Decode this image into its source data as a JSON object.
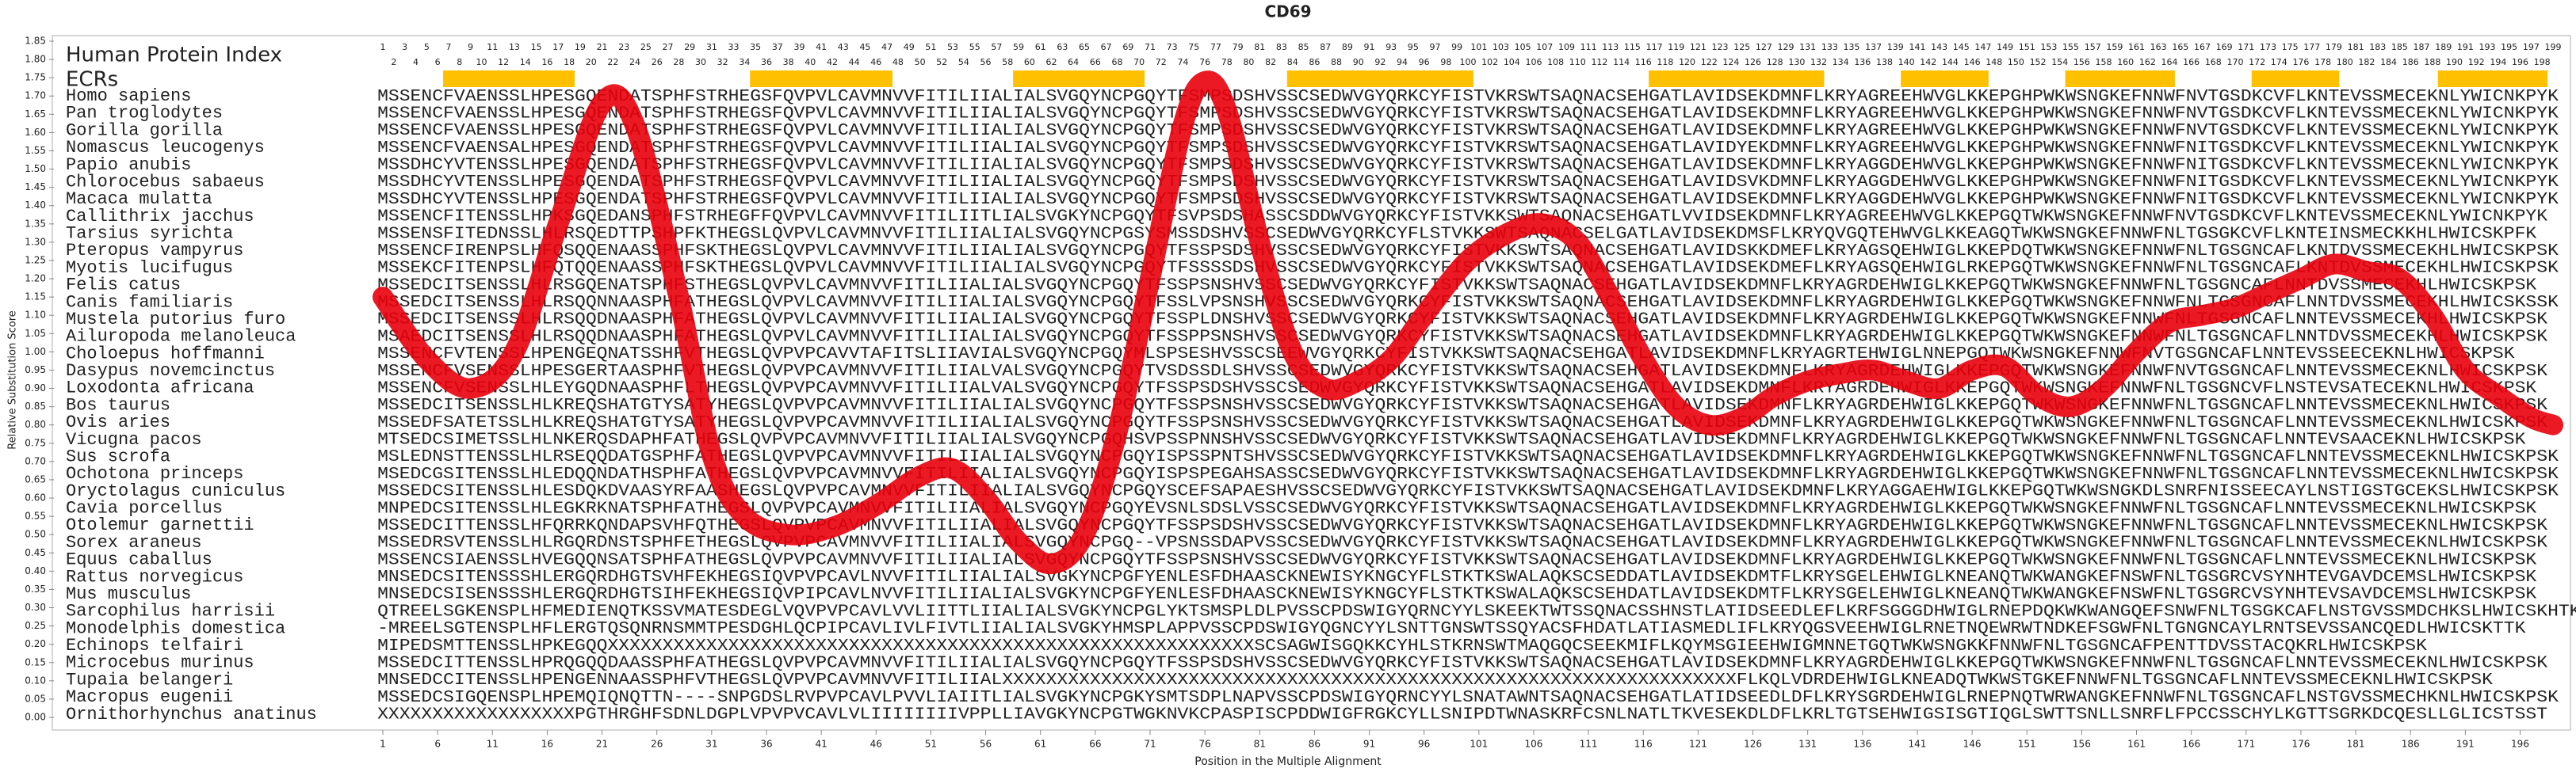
{
  "chart_data": {
    "type": "line",
    "title": "CD69",
    "xlabel": "Position in the Multiple Alignment",
    "ylabel": "Relative Substitution Score",
    "color": "#e8000b",
    "ylim": [
      0,
      1.85
    ],
    "yticks": [
      {
        "value": 0,
        "label": "0.00"
      },
      0.05,
      {
        "value": 0.1,
        "label": "0.10"
      },
      0.15,
      {
        "value": 0.2,
        "label": "0.20"
      },
      0.25,
      {
        "value": 0.3,
        "label": "0.30"
      },
      0.35,
      {
        "value": 0.4,
        "label": "0.40"
      },
      0.45,
      {
        "value": 0.5,
        "label": "0.50"
      },
      0.55,
      {
        "value": 0.6,
        "label": "0.60"
      },
      0.65,
      {
        "value": 0.7,
        "label": "0.70"
      },
      0.75,
      {
        "value": 0.8,
        "label": "0.80"
      },
      0.85,
      {
        "value": 0.9,
        "label": "0.90"
      },
      0.95,
      {
        "value": 1,
        "label": "1.00"
      },
      1.05,
      {
        "value": 1.1,
        "label": "1.10"
      },
      1.15,
      {
        "value": 1.2,
        "label": "1.20"
      },
      1.25,
      {
        "value": 1.3,
        "label": "1.30"
      },
      1.35,
      {
        "value": 1.4,
        "label": "1.40"
      },
      1.45,
      {
        "value": 1.5,
        "label": "1.50"
      },
      1.55,
      {
        "value": 1.6,
        "label": "1.60"
      },
      1.65,
      {
        "value": 1.7,
        "label": "1.70"
      },
      1.75,
      {
        "value": 1.8,
        "label": "1.80"
      },
      1.85
    ],
    "xlim": [
      1,
      199
    ],
    "xticks": [
      1,
      6,
      11,
      16,
      21,
      26,
      31,
      36,
      41,
      46,
      51,
      56,
      61,
      66,
      71,
      76,
      81,
      86,
      91,
      96,
      101,
      106,
      111,
      116,
      121,
      126,
      131,
      136,
      141,
      146,
      151,
      156,
      161,
      166,
      171,
      176,
      181,
      186,
      191,
      196
    ],
    "x": [
      1,
      5,
      9,
      13,
      17,
      21,
      24,
      28,
      31,
      34,
      38,
      42,
      46,
      50,
      53,
      56,
      59,
      62,
      65,
      68,
      71,
      74,
      76,
      78,
      81,
      84,
      87,
      90,
      93,
      96,
      100,
      104,
      107,
      110,
      113,
      116,
      119,
      122,
      125,
      128,
      131,
      134,
      137,
      140,
      143,
      146,
      149,
      152,
      155,
      158,
      161,
      164,
      167,
      170,
      173,
      176,
      179,
      182,
      185,
      188,
      191,
      194,
      197,
      199
    ],
    "values": [
      1.15,
      0.98,
      0.9,
      1.0,
      1.35,
      1.68,
      1.62,
      1.15,
      0.72,
      0.55,
      0.5,
      0.52,
      0.58,
      0.66,
      0.68,
      0.6,
      0.48,
      0.42,
      0.5,
      0.78,
      1.2,
      1.62,
      1.74,
      1.66,
      1.3,
      1.0,
      0.9,
      0.92,
      0.98,
      1.1,
      1.25,
      1.33,
      1.35,
      1.3,
      1.15,
      0.98,
      0.85,
      0.8,
      0.82,
      0.88,
      0.92,
      0.94,
      0.95,
      0.92,
      0.9,
      0.95,
      0.96,
      0.88,
      0.85,
      0.9,
      1.0,
      1.08,
      1.1,
      1.12,
      1.16,
      1.2,
      1.24,
      1.22,
      1.2,
      1.1,
      0.95,
      0.88,
      0.82,
      0.8
    ],
    "protein_index_label": "Human Protein Index",
    "protein_index": [
      1,
      2,
      3,
      4,
      5,
      6,
      7,
      8,
      9,
      10,
      11,
      12,
      13,
      14,
      15,
      16,
      17,
      18,
      19,
      20,
      21,
      22,
      23,
      24,
      25,
      26,
      27,
      28,
      29,
      30,
      31,
      32,
      33,
      34,
      35,
      36,
      37,
      38,
      39,
      40,
      41,
      42,
      43,
      44,
      45,
      46,
      47,
      48,
      49,
      50,
      51,
      52,
      53,
      54,
      55,
      56,
      57,
      58,
      59,
      60,
      61,
      62,
      63,
      64,
      65,
      66,
      67,
      68,
      69,
      70,
      71,
      72,
      73,
      74,
      75,
      76,
      77,
      78,
      79,
      80,
      81,
      82,
      83,
      84,
      85,
      86,
      87,
      88,
      89,
      90,
      91,
      92,
      93,
      94,
      95,
      96,
      97,
      98,
      99,
      100,
      101,
      102,
      103,
      104,
      105,
      106,
      107,
      108,
      109,
      110,
      111,
      112,
      113,
      114,
      115,
      116,
      117,
      118,
      119,
      120,
      121,
      122,
      123,
      124,
      125,
      126,
      127,
      128,
      129,
      130,
      131,
      132,
      133,
      134,
      135,
      136,
      137,
      138,
      139,
      140,
      141,
      142,
      143,
      144,
      145,
      146,
      147,
      148,
      149,
      150,
      151,
      152,
      153,
      154,
      155,
      156,
      157,
      158,
      159,
      160,
      161,
      162,
      163,
      164,
      165,
      166,
      167,
      168,
      169,
      170,
      171,
      172,
      173,
      174,
      175,
      176,
      177,
      178,
      179,
      180,
      181,
      182,
      183,
      184,
      185,
      186,
      187,
      188,
      189,
      190,
      191,
      192,
      193,
      194,
      195,
      196,
      197,
      198,
      199
    ],
    "ecr_label": "ECRs",
    "ecr_color": "#ffc000",
    "ecrs": [
      [
        7,
        18
      ],
      [
        35,
        47
      ],
      [
        59,
        70
      ],
      [
        84,
        100
      ],
      [
        117,
        132
      ],
      [
        140,
        147
      ],
      [
        155,
        164
      ],
      [
        172,
        179
      ],
      [
        189,
        198
      ]
    ],
    "sequence_color": "#1d3c8c",
    "rows": [
      {
        "species": "Homo sapiens",
        "sequence": "MSSENCFVAENSSLHPESGQENDATSPHFSTRHEGSFQVPVLCAVMNVVFITILIIALIALSVGQYNCPGQYTFSMPSDSHVSSCSEDWVGYQRKCYFISTVKRSWTSAQNACSEHGATLAVIDSEKDMNFLKRYAGREEHWVGLKKEPGHPWKWSNGKEFNNWFNVTGSDKCVFLKNTEVSSMECEKNLYWICNKPYK"
      },
      {
        "species": "Pan troglodytes",
        "sequence": "MSSENCFVAENSSLHPESGQENDATSPHFSTRHEGSFQVPVLCAVMNVVFITILIIALIALSVGQYNCPGQYTFSMPSDSHVSSCSEDWVGYQRKCYFISTVKRSWTSAQNACSEHGATLAVIDSEKDMNFLKRYAGREEHWVGLKKEPGHPWKWSNGKEFNNWFNVTGSDKCVFLKNTEVSSMECEKNLYWICNKPYK"
      },
      {
        "species": "Gorilla gorilla",
        "sequence": "MSSENCFVAENSSLHPESGQENDATSPHFSTRHEGSFQVPVLCAVMNVVFITILIIALIALSVGQYNCPGQYTFSMPSDSHVSSCSEDWVGYQRKCYFISTVKRSWTSAQNACSEHGATLAVIDSEKDMNFLKRYAGREEHWVGLKKEPGHPWKWSNGKEFNNWFNVTGSDKCVFLKNTEVSSMECEKNLYWICNKPYK"
      },
      {
        "species": "Nomascus leucogenys",
        "sequence": "MSSENCFVAENSALHPESGQENDATSPHFSTRHEGSFQVPVLCAVMNVVFITILIIALIALSVGQYNCPGQYTFSMPSDSHVSSCSEDWVGYQRKCYFISTVKRSWTSAQNACSEHGATLAVIDYEKDMNFLKRYAGREEHWVGLKKEPGHPWKWSNGKEFNNWFNITGSDKCVFLKNTEVSSMECEKNLYWICNKPYK"
      },
      {
        "species": "Papio anubis",
        "sequence": "MSSDHCYVTENSSLHPESGQENDATSPHFSTRHEGSFQVPVLCAVMNVVFITILIIALIALSVGQYNCPGQYTFSMPSDSHVSSCSEDWVGYQRKCYFISTVKRSWTSAQNACSEHGATLAVIDSEKDMNFLKRYAGGDEHWVGLKKEPGHPWKWSNGKEFNNWFNITGSDKCVFLKNTEVSSMECEKNLYWICNKPYK"
      },
      {
        "species": "Chlorocebus sabaeus",
        "sequence": "MSSDHCYVTENSSLHPESGQENDATSPHFSTRHEGSFQVPVLCAVMNVVFITILIIALIALSVGQYNCPGQYTFSMPSDSHVSSCSEDWVGYQRKCYFISTVKRSWTSAQNACSEHGATLAVIDSVKDMNFLKRYAGGDEHWVGLKKEPGHPWKWSNGKEFNNWFNITGSDKCVFLKNTEVSSMECEKNLYWICNKPYK"
      },
      {
        "species": "Macaca mulatta",
        "sequence": "MSSDHCYVTENSSLHPESGQENDATSPHFSTRHEGSFQVPVLCAVMNVVFITILIIALIALSVGQYNCPGQYTFSMPSDSHVSSCSEDWVGYQRKCYFISTVKRSWTSAQNACSEHGATLAVIDSEKDMNFLKRYAGGDEHWVGLKKEPGHPWKWSNGKEFNNWFNITGSDKCVFLKNTEVSSMECEKNLYWICNKPYK"
      },
      {
        "species": "Callithrix jacchus",
        "sequence": "MSSENCFITENSSLHPKSGQEDANSPHFSTRHEGFFQVPVLCAVMNVVFITILIITLIALSVGKYNCPGQYTFSVPSDSHASSCSDDWVGYQRKCYFISTVKKSWTSAQNACSEHGATLVVIDSEKDMNFLKRYAGREEHWVGLKKEPGQTWKWSNGKEFNNWFNVTGSDKCVFLKNTEVSSMECEKNLYWICNKPYK"
      },
      {
        "species": "Tarsius syrichta",
        "sequence": "MSSENSFITEDNSSLHLRSQEDTTPSHPFKTHEGSLQVPVLCAVMNVVFITILIIALIALSVGQYNCPGSYSMSSDSHVSSCSEDWVGYQRKCYFLSTVKKSWTSAQNACSELGATLAVIDSEKDMSFLKRYQVGQTEHWVGLKKEAGQTWKWSNGKEFNNWFNLTGSGKCVFLKNTEINSMECKKHLHWICSKPFK"
      },
      {
        "species": "Pteropus vampyrus",
        "sequence": "MSSENCFIRENPSLHFQSQQENAASSPHFSKTHEGSLQVPVLCAVMNVVFITILIIALIALSVGQYNCPGQYTFSSPSDSHVSSCSEDWVGYQRKCYFISTVKKSWTSAQNACSEHGATLAVIDSKKDMEFLKRYAGSQEHWIGLKKEPDQTWKWSNGKEFNNWFNLTGSGNCAFLKNTDVSSMECEKHLHWICSKPSK"
      },
      {
        "species": "Myotis lucifugus",
        "sequence": "MSSEKCFITENPSLHFQTQQENAASSPHFSKTHEGSLQVPVLCAVMNVVFITILIIALIALSVGQYNCPGQYTFSSSSDSHVSSCSEDWVGYQRKCYFISTVKKSWTSAQNACSEHGATLAVIDSEKDMEFLKRYAGSQEHWIGLRKEPGQTWKWSNGKEFNNWFNLTGSGNCAFLKNTDVSSMECEKHLHWICSKPSK"
      },
      {
        "species": "Felis catus",
        "sequence": "MSSEDCITSENSSLHLRSGQENATSPHFSTHEGSLQVPVLCAVMNVVFITILIIALIALSVGQYNCPGQYTFSSPSNSHVSSCSEDWVGYQRKCYFISTVKKSWTSAQNACSEHGATLAVIDSEKDMNFLKRYAGRDEHWIGLKKEPGQTWKWSNGKEFNNWFNLTGSGNCAFLNNTDVSSMECEKHLHWICSKPSK"
      },
      {
        "species": "Canis familiaris",
        "sequence": "MSSEDCITSENSSLHLRSQQNNAASPHFATHEGSLQVPVLCAVMNVVFITILIIALIALSVGQYNCPGQYTFSSLVPSNSHVSSCSEDWVGYQRKCYFISTVKKSWTSAQNACSEHGATLAVIDSEKDMNFLKRYAGRDEHWIGLKKEPGQTWKWSNGKEFNNWFNLTGSGNCAFLNNTDVSSMECEKHLHWICSKSSK"
      },
      {
        "species": "Mustela putorius furo",
        "sequence": "MSSEDCITSENSSLHLRSQQDNAASPHFATHEGSLQVPVLCAVMNVVFITILIIALIALSVGQYNCPGQYTFSSPLDNSHVSSCSEDWVGYQRKCYFISTVKKSWTSAQNACSEHGATLAVIDSEKDMNFLKRYAGRDEHWIGLKKEPGQTWKWSNGKEFNNWFNLTGSGNCAFLNNTEVSSMECEKHLHWICSKPSK"
      },
      {
        "species": "Ailuropoda melanoleuca",
        "sequence": "MSAEDCITSENSSLHLRSQQDNAASPHFATHEGSLQVPVLCAVMNVVFITILIIALIALSVGQYNCPGQYTFSSPPSNSHVSSCSEDWVGYQRKCYFISTVKKSWTSAQNACSEHGATLAVIDSEKDMNFLKRYAGRDEHWIGLKKEPGQTWKWSNGKEFNNWFNLTGSGNCAFLNNTDVSSMECEKHLHWICSKPSK"
      },
      {
        "species": "Choloepus hoffmanni",
        "sequence": "MSSENCFVTENSSLHPENGEQNATSSHFVTHEGSLQVPVPCAVVTAFITSLIIAVIALSVGQYNCPGQYMLSPSESHVSSCSEEWVGYQRKCYFISTVKKSWTSAQNACSEHGATLAVIDSEKDMNFLKRYAGRTEHWIGLNNEPGQTWKWSNGKEFNNWFNVTGSGNCAFLNNTEVSSEECEKNLHWICSKPSK"
      },
      {
        "species": "Dasypus novemcinctus",
        "sequence": "MSSENCFVSENSSLHPESGERTAASPHFVTHEGSLQVPVPCAVMNVVFITILIIALVALSVGQYNCPGQYTVSDSSDLSHVSSCSEDWVGYQRKCYFISTVKKSWTSAQNACSEHGATLAVIDSEKDMNFLKRYAGRDEHWIGLKKEPGQTWKWSNGKEFNNWFNVTGSGNCAFLNNTEVSSMECEKNLHWICSKPSK"
      },
      {
        "species": "Loxodonta africana",
        "sequence": "MSSENCFVSENSSLHLEYGQDNAASPHFLTHEGSLQVPVPCAVMNVVFITILIIALVALSVGQYNCPGQYTFSSPSDSHVSSCSEDWVGYQRKCYFISTVKKSWTSAQNACSEHGATLAVIDSEKDMNFLKRYAGRDEHWIGLKKEPGQTWKWSNGKEFNNWFNLTGSGNCVFLNSTEVSATECEKNLHWICSKPSK"
      },
      {
        "species": "Bos taurus",
        "sequence": "MSSEDCITSENSSLHLKREQSHATGTYSATYHEGSLQVPVPCAVMNVVFITILIIALIALSVGQYNCPGQYTFSSPSNSHVSSCSEDWVGYQRKCYFISTVKKSWTSAQNACSEHGATLAVIDSEKDMNFLKRYAGRDEHWIGLKKEPGQTWKWSNGKEFNNWFNLTGSGNCAFLNNTEVSSMECEKNLHWICSKPSK"
      },
      {
        "species": "Ovis aries",
        "sequence": "MSSEDFSATETSSLHLKREQSHATGTYSATYHEGSLQVPVPCAVMNVVFITILIIALIALSVGQYNCPGQYTFSSPSNSHVSSCSEDWVGYQRKCYFISTVKKSWTSAQNACSEHGATLAVIDSEKDMNFLKRYAGRDEHWIGLKKEPGQTWKWSNGKEFNNWFNLTGSGNCAFLNNTEVSSMECEKNLHWICSKPSK"
      },
      {
        "species": "Vicugna pacos",
        "sequence": "MTSEDCSIMETSSLHLNKERQSDAPHFATHEGSLQVPVPCAVMNVVFITILIIALIALSVGQYNCPGQHSVPSSPNNSHVSSCSEDWVGYQRKCYFISTVKKSWTSAQNACSEHGATLAVIDSEKDMNFLKRYAGRDEHWIGLKKEPGQTWKWSNGKEFNNWFNLTGSGNCAFLNNTEVSAACEKNLHWICSKPSK"
      },
      {
        "species": "Sus scrofa",
        "sequence": "MSLEDNSTTENSSLHLRSEQQDATGSPHFATHEGSLQVPVPCAVMNVVFITILIIALIALSVGQYNCPGQYISPSSPNTSHVSSCSEDWVGYQRKCYFISTVKKSWTSAQNACSEHGATLAVIDSEKDMNFLKRYAGRDEHWIGLKKEPGQTWKWSNGKEFNNWFNLTGSGNCAFLNNTEVSSMECEKNLHWICSKPSK"
      },
      {
        "species": "Ochotona princeps",
        "sequence": "MSEDCGSITENSSLHLEDQQNDATHSPHFATHEGSLQVPVPCAVMNVVFITILIIALIALSVGQYNCPGQYISPSPEGAHSASSCSEDWVGYQRKCYFISTVKKSWTSAQNACSEHGATLAVIDSEKDMNFLKRYAGRDEHWIGLKKEPGQTWKWSNGKEFNNWFNLTGSGNCAFLNNTEVSSMECEKNLHWICSKPSK"
      },
      {
        "species": "Oryctolagus cuniculus",
        "sequence": "MSSEDCSITENSSLHLESDQKDVAASYRFAASHEGSLQVPVPCAVMNVVFITILIIALIALSVGQYNCPGQYSCEFSAPAESHVSSCSEDWVGYQRKCYFISTVKKSWTSAQNACSEHGATLAVIDSEKDMNFLKRYAGGAEHWIGLKKEPGQTWKWSNGKDLSNRFNISSEECAYLNSTIGSTGCEKSLHWICSKPSK"
      },
      {
        "species": "Cavia porcellus",
        "sequence": "MNPEDCSITENSSLHLEGKRKNATSPHFATHEGSLQVPVPCAVMNVVFITILIIALIALSVGQYNCPGQYEVSNLSDSLVSSCSEDWVGYQRKCYFISTVKKSWTSAQNACSEHGATLAVIDSEKDMNFLKRYAGRDEHWIGLKKEPGQTWKWSNGKEFNNWFNLTGSGNCAFLNNTEVSSMECEKNLHWICSKPSK"
      },
      {
        "species": "Otolemur garnettii",
        "sequence": "MSSEDCITTENSSLHFQRRKQNDAPSVHFQTHEGSLQVPVPCAVMNVVFITILIIALIALSVGQYNCPGQYTFSSPSDSHVSSCSEDWVGYQRKCYFISTVKKSWTSAQNACSEHGATLAVIDSEKDMNFLKRYAGRDEHWIGLKKEPGQTWKWSNGKEFNNWFNLTGSGNCAFLNNTEVSSMECEKNLHWICSKPSK"
      },
      {
        "species": "Sorex araneus",
        "sequence": "MSSEDRSVTENSSLHLRGQRDNSTSPHFETHEGSLQVPVPCAVMNVVFITILIIALIALSVGQYNCPGQ--VPSNSSDAPVSSCSEDWVGYQRKCYFISTVKKSWTSAQNACSEHGATLAVIDSEKDMNFLKRYAGRDEHWIGLKKEPGQTWKWSNGKEFNNWFNLTGSGNCAFLNNTEVSSMECEKNLHWICSKPSK"
      },
      {
        "species": "Equus caballus",
        "sequence": "MSSENCSIAENSSLHVEGQQNSATSPHFATHEGSLQVPVPCAVMNVVFITILIIALIALSVGQYNCPGQYTFSSPSNSHVSSCSEDWVGYQRKCYFISTVKKSWTSAQNACSEHGATLAVIDSEKDMNFLKRYAGRDEHWIGLKKEPGQTWKWSNGKEFNNWFNLTGSGNCAFLNNTEVSSMECEKNLHWICSKPSK"
      },
      {
        "species": "Rattus norvegicus",
        "sequence": "MNSEDCSITENSSSHLERGQRDHGTSVHFEKHEGSIQVPVPCAVLNVVFITILIIALIALSVGKYNCPGFYENLESFDHAASCKNEWISYKNGCYFLSTKTKSWALAQKSCSEDDATLAVIDSEKDMTFLKRYSGELEHWIGLKNEANQTWKWANGKEFNSWFNLTGSGRCVSYNHTEVGAVDCEMSLHWICSKPSK"
      },
      {
        "species": "Mus musculus",
        "sequence": "MNSEDCSISENSSSHLERGQRDHGTSIHFEKHEGSIQVPIPCAVLNVVFITILIIALIALSVGKYNCPGFYENLESFDHAASCKNEWISYKNGCYFLSTKTKSWALAQKSCSEHDATLAVIDSEKDMTFLKRYSGELEHWIGLKNEANQTWKWANGKEFNSWFNLTGSGRCVSYNHTEVSAVDCEMSLHWICSKPSK"
      },
      {
        "species": "Sarcophilus harrisii",
        "sequence": "QTREELSGKENSPLHFMEDIENQTKSSVMATESDEGLVQVPVPCAVLVVLIITTLIIALIALSVGKYNCPGLYKTSMSPLDLPVSSCPDSWIGYQRNCYYLSKEEKTWTSSQNACSSHNSTLATIDSEEDLEFLKRFSGGGDHWIGLRNEPDQKWKWANGQEFSNWFNLTGSGKCAFLNSTGVSSMDCHKSLHWICSKHTK"
      },
      {
        "species": "Monodelphis domestica",
        "sequence": "-MREELSGTENSPLHFLERGTQSQNRNSMMTPESDGHLQCPIPCAVLIVLFIVTLIIALIALSVGKYHMSPLAPPVSSCPDSWIGYQGNCYYLSNTTGNSWTSSQYACSFHDATLATIASMEDLIFLKRYQGSVEEHWIGLRNETNQEWRWTNDKEFSGWFNLTGNGNCAYLRNTSEVSSANCQEDLHWICSKTTK"
      },
      {
        "species": "Echinops telfairi",
        "sequence": "MIPEDSMTTENSSLHPKEGQQXXXXXXXXXXXXXXXXXXXXXXXXXXXXXXXXXXXXXXXXXXXXXXXXXXXXXXXXXXXSCSAGWISGQKKCYHLSTKRNSWTMAQGQCSEEKMIFLKQYMSGIEEHWIGMNNETGQTWKWSNGKKFNNWFNLTGSGNCAFPENTTDVSSTACQKRLHWICSKPSK"
      },
      {
        "species": "Microcebus murinus",
        "sequence": "MSSEDCITTENSSLHPRQGQQDAASSPHFATHEGSLQVPVPCAVMNVVFITILIIALIALSVGQYNCPGQYTFSSPSDSHVSSCSEDWVGYQRKCYFISTVKKSWTSAQNACSEHGATLAVIDSEKDMNFLKRYAGRDEHWIGLKKEPGQTWKWSNGKEFNNWFNLTGSGNCAFLNNTEVSSMECEKNLHWICSKPSK"
      },
      {
        "species": "Tupaia belangeri",
        "sequence": "MNSEDCCITENSSLHPENGENNAASSPHFVTHEGSLQVPVPCAVMNVVFITILIIALXXXXXXXXXXXXXXXXXXXXXXXXXXXXXXXXXXXXXXXXXXXXXXXXXXXXXXXXXXXXXXXXXXXFLKQLVDRDEHWIGLKNEADQTWKWSTGKEFNNWFNLTGSGNCAFLNNTEVSSMECEKNLHWICSKPSK"
      },
      {
        "species": "Macropus eugenii",
        "sequence": "MSSEDCSIGQENSPLHPEMQIQNQTTN----SNPGDSLRVPVPCAVLPVVLIAIITLIALSVGKYNCPGKYSMTSDPLNAPVSSCPDSWIGYQRNCYYLSNATAWNTSAQNACSEHGATLATIDSEEDLDFLKRYSGRDEHWIGLRNEPNQTWRWANGKEFNNWFNLTGSGNCAFLNSTGVSSMECHKNLHWICSKPSK"
      },
      {
        "species": "Ornithorhynchus anatinus",
        "sequence": "XXXXXXXXXXXXXXXXXXPGTHRGHFSDNLDGPLVPVPVCAVLVLIIIIIIIIVPPLLIAVGKYNCPGTWGKNVKCPASPISCPDDWIGFRGKCYLLSNIPDTWNASKRFCSNLNATLTKVESEKDLDFLKRLTGTSEHWIGSISGTIQGLSWTTSNLLSNRFLFPCCSSCHYLKGTTSGRKDCQESLLGLICSTSST"
      }
    ]
  }
}
